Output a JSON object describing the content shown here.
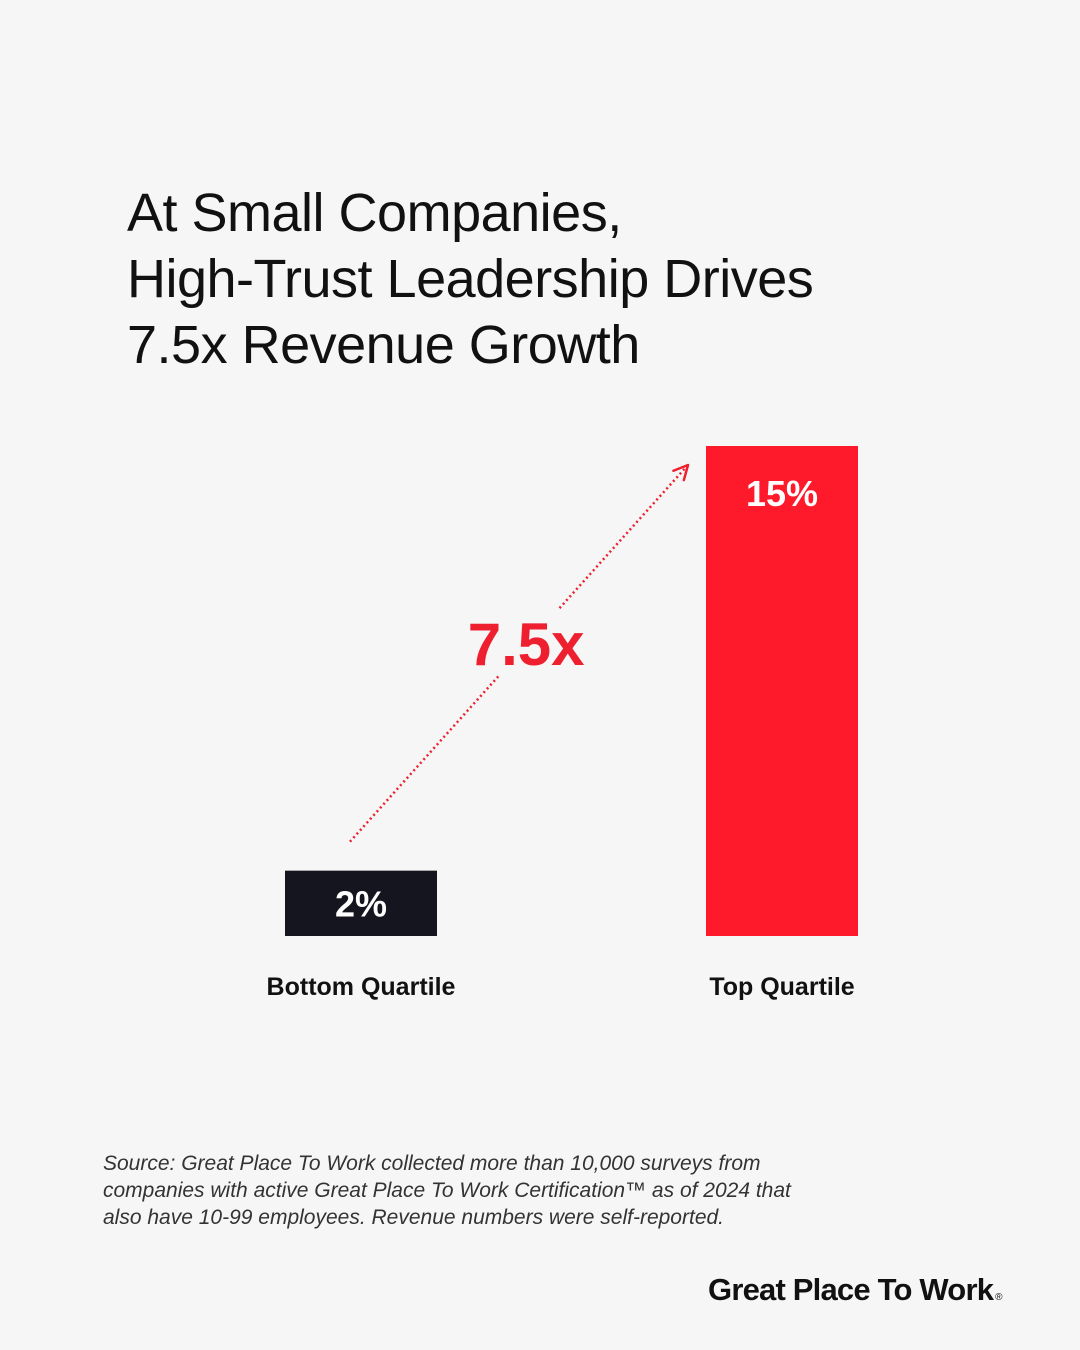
{
  "title_lines": [
    "At Small Companies,",
    "High-Trust Leadership Drives",
    "7.5x Revenue Growth"
  ],
  "chart_data": {
    "type": "bar",
    "title": "At Small Companies, High-Trust Leadership Drives 7.5x Revenue Growth",
    "categories": [
      "Bottom Quartile",
      "Top Quartile"
    ],
    "values": [
      2,
      15
    ],
    "value_labels": [
      "2%",
      "15%"
    ],
    "unit": "%",
    "ylim": [
      0,
      15
    ],
    "grid": false,
    "annotation": "7.5x",
    "colors": {
      "bottom_bar": "#15151f",
      "top_bar": "#fe1a2b",
      "accent": "#ee2030",
      "value_text": "#ffffff",
      "category_text": "#111111"
    }
  },
  "source_lines": [
    "Source: Great Place To Work collected more than 10,000 surveys from",
    "companies with active Great Place To Work Certification™ as of 2024 that",
    "also have 10-99 employees. Revenue numbers were self-reported."
  ],
  "logo": {
    "text": "Great Place To Work",
    "mark": "®"
  }
}
